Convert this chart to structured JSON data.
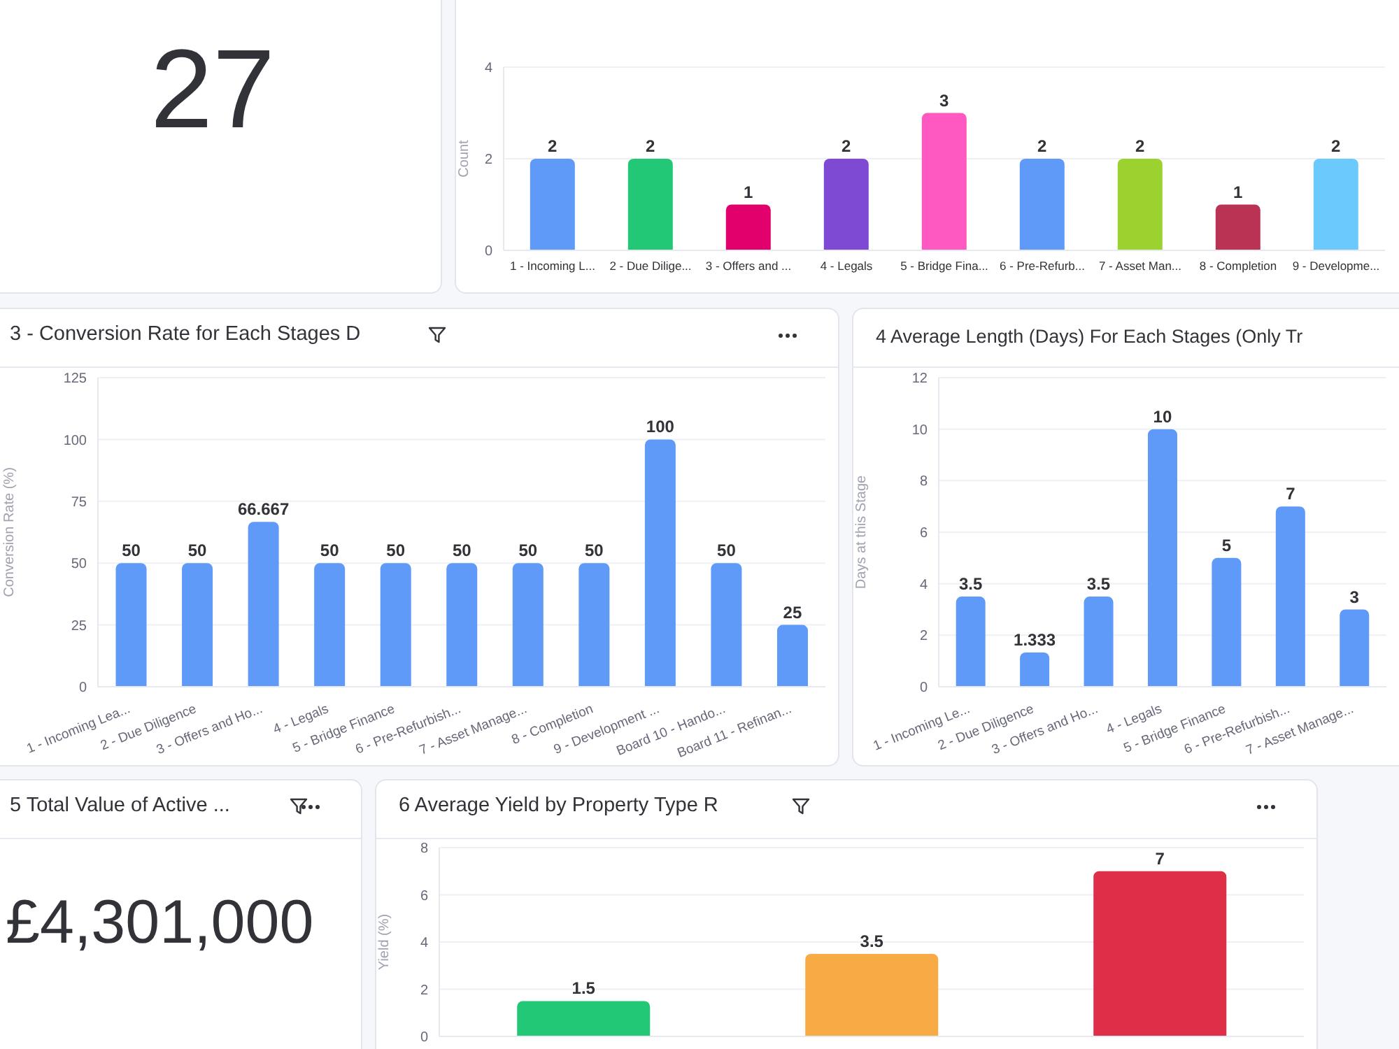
{
  "chart_data": [
    {
      "type": "other",
      "annotations": [
        "27"
      ]
    },
    {
      "type": "bar",
      "ylabel": "Count",
      "categories": [
        "1 - Incoming L...",
        "2 - Due Dilige...",
        "3 - Offers and ...",
        "4 - Legals",
        "5 - Bridge Fina...",
        "6 - Pre-Refurb...",
        "7 - Asset Man...",
        "8 - Completion",
        "9 - Developme..."
      ],
      "values": [
        2,
        2,
        1,
        2,
        3,
        2,
        2,
        1,
        2
      ],
      "colors": [
        "#5f9af8",
        "#22c875",
        "#e2006d",
        "#7f4ad3",
        "#fe58c1",
        "#5f9af8",
        "#9cd230",
        "#bb3354",
        "#6cc9fe"
      ],
      "ylim": [
        0,
        4
      ],
      "yticks": [
        0,
        2,
        4
      ],
      "grid": "y",
      "data_labels": true
    },
    {
      "type": "bar",
      "title": "3 - Conversion Rate for Each Stages D",
      "ylabel": "Conversion Rate (%)",
      "categories": [
        "1 - Incoming Lea...",
        "2 - Due Diligence",
        "3 - Offers and Ho...",
        "4 - Legals",
        "5 - Bridge Finance",
        "6 - Pre-Refurbish...",
        "7 - Asset Manage...",
        "8 - Completion",
        "9 - Development ...",
        "Board 10 - Hando...",
        "Board 11 - Refinan..."
      ],
      "values": [
        50,
        50,
        66.667,
        50,
        50,
        50,
        50,
        50,
        100,
        50,
        25
      ],
      "color": "#5f9af8",
      "ylim": [
        0,
        125
      ],
      "yticks": [
        0,
        25,
        50,
        75,
        100,
        125
      ],
      "grid": "y",
      "data_labels": true
    },
    {
      "type": "bar",
      "title": "4 Average Length (Days) For Each Stages (Only Tr",
      "ylabel": "Days at this Stage",
      "categories": [
        "1 - Incoming Le...",
        "2 - Due Diligence",
        "3 - Offers and Ho...",
        "4 - Legals",
        "5 - Bridge Finance",
        "6 - Pre-Refurbish...",
        "7 - Asset Manage..."
      ],
      "values": [
        3.5,
        1.333,
        3.5,
        10,
        5,
        7,
        3
      ],
      "color": "#5f9af8",
      "ylim": [
        0,
        12
      ],
      "yticks": [
        0,
        2,
        4,
        6,
        8,
        10,
        12
      ],
      "grid": "y",
      "data_labels": true
    },
    {
      "type": "other",
      "title": "5 Total Value of Active ...",
      "annotations": [
        "£4,301,000"
      ]
    },
    {
      "type": "bar",
      "title": "6 Average Yield by Property Type R",
      "ylabel": "Yield (%)",
      "categories": [
        null,
        null,
        null
      ],
      "values": [
        1.5,
        3.5,
        7
      ],
      "colors": [
        "#22c875",
        "#f8aa44",
        "#de2e48"
      ],
      "ylim": [
        0,
        8
      ],
      "yticks": [
        0,
        2,
        4,
        6,
        8
      ],
      "grid": "y",
      "data_labels": true
    }
  ]
}
